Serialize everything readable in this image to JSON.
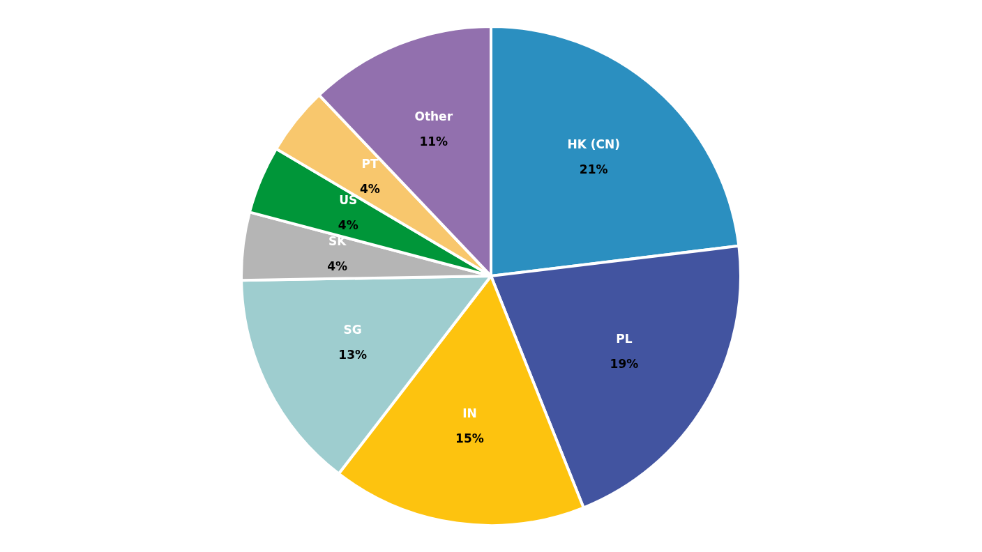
{
  "chart_data": {
    "type": "pie",
    "categories": [
      "HK (CN)",
      "PL",
      "IN",
      "SG",
      "SK",
      "US",
      "PT",
      "Other"
    ],
    "values": [
      21,
      19,
      15,
      13,
      4,
      4,
      4,
      11
    ],
    "value_labels": [
      "21%",
      "19%",
      "15%",
      "13%",
      "4%",
      "4%",
      "4%",
      "11%"
    ],
    "colors": [
      "#2b8fc0",
      "#4254a0",
      "#fdc30f",
      "#9ecdcf",
      "#b5b5b5",
      "#009639",
      "#f8c76d",
      "#9270ae"
    ],
    "legend": false
  }
}
